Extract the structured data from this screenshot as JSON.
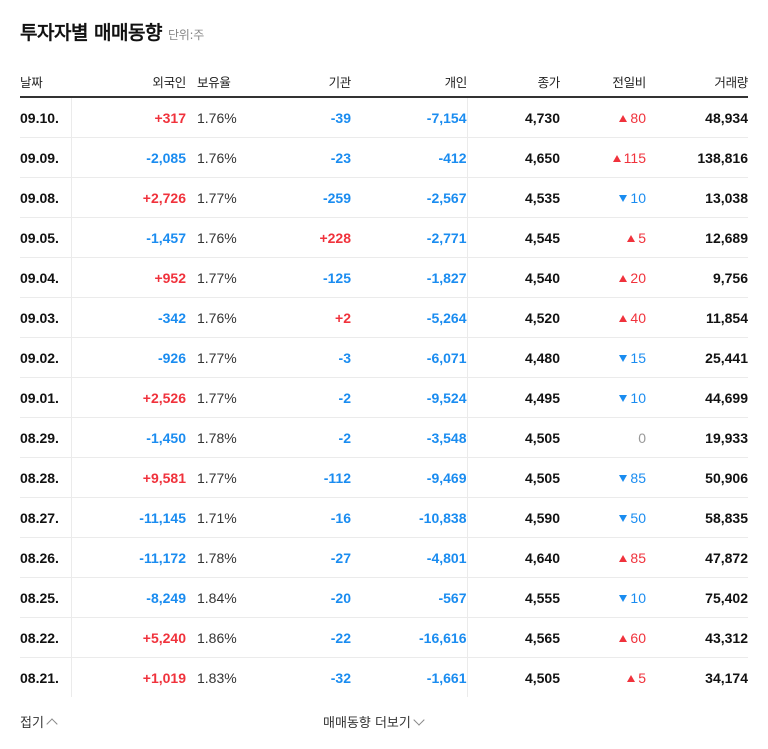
{
  "header": {
    "title": "투자자별 매매동향",
    "unit": "단위:주"
  },
  "table": {
    "columns": [
      "날짜",
      "외국인",
      "보유율",
      "기관",
      "개인",
      "종가",
      "전일비",
      "거래량"
    ],
    "rows": [
      {
        "date": "09.10.",
        "foreign": "+317",
        "foreign_dir": "up",
        "ratio": "1.76%",
        "inst": "-39",
        "inst_dir": "down",
        "indiv": "-7,154",
        "indiv_dir": "down",
        "close": "4,730",
        "change": "80",
        "change_dir": "up",
        "volume": "48,934"
      },
      {
        "date": "09.09.",
        "foreign": "-2,085",
        "foreign_dir": "down",
        "ratio": "1.76%",
        "inst": "-23",
        "inst_dir": "down",
        "indiv": "-412",
        "indiv_dir": "down",
        "close": "4,650",
        "change": "115",
        "change_dir": "up",
        "volume": "138,816"
      },
      {
        "date": "09.08.",
        "foreign": "+2,726",
        "foreign_dir": "up",
        "ratio": "1.77%",
        "inst": "-259",
        "inst_dir": "down",
        "indiv": "-2,567",
        "indiv_dir": "down",
        "close": "4,535",
        "change": "10",
        "change_dir": "down",
        "volume": "13,038"
      },
      {
        "date": "09.05.",
        "foreign": "-1,457",
        "foreign_dir": "down",
        "ratio": "1.76%",
        "inst": "+228",
        "inst_dir": "up",
        "indiv": "-2,771",
        "indiv_dir": "down",
        "close": "4,545",
        "change": "5",
        "change_dir": "up",
        "volume": "12,689"
      },
      {
        "date": "09.04.",
        "foreign": "+952",
        "foreign_dir": "up",
        "ratio": "1.77%",
        "inst": "-125",
        "inst_dir": "down",
        "indiv": "-1,827",
        "indiv_dir": "down",
        "close": "4,540",
        "change": "20",
        "change_dir": "up",
        "volume": "9,756"
      },
      {
        "date": "09.03.",
        "foreign": "-342",
        "foreign_dir": "down",
        "ratio": "1.76%",
        "inst": "+2",
        "inst_dir": "up",
        "indiv": "-5,264",
        "indiv_dir": "down",
        "close": "4,520",
        "change": "40",
        "change_dir": "up",
        "volume": "11,854"
      },
      {
        "date": "09.02.",
        "foreign": "-926",
        "foreign_dir": "down",
        "ratio": "1.77%",
        "inst": "-3",
        "inst_dir": "down",
        "indiv": "-6,071",
        "indiv_dir": "down",
        "close": "4,480",
        "change": "15",
        "change_dir": "down",
        "volume": "25,441"
      },
      {
        "date": "09.01.",
        "foreign": "+2,526",
        "foreign_dir": "up",
        "ratio": "1.77%",
        "inst": "-2",
        "inst_dir": "down",
        "indiv": "-9,524",
        "indiv_dir": "down",
        "close": "4,495",
        "change": "10",
        "change_dir": "down",
        "volume": "44,699"
      },
      {
        "date": "08.29.",
        "foreign": "-1,450",
        "foreign_dir": "down",
        "ratio": "1.78%",
        "inst": "-2",
        "inst_dir": "down",
        "indiv": "-3,548",
        "indiv_dir": "down",
        "close": "4,505",
        "change": "0",
        "change_dir": "flat",
        "volume": "19,933"
      },
      {
        "date": "08.28.",
        "foreign": "+9,581",
        "foreign_dir": "up",
        "ratio": "1.77%",
        "inst": "-112",
        "inst_dir": "down",
        "indiv": "-9,469",
        "indiv_dir": "down",
        "close": "4,505",
        "change": "85",
        "change_dir": "down",
        "volume": "50,906"
      },
      {
        "date": "08.27.",
        "foreign": "-11,145",
        "foreign_dir": "down",
        "ratio": "1.71%",
        "inst": "-16",
        "inst_dir": "down",
        "indiv": "-10,838",
        "indiv_dir": "down",
        "close": "4,590",
        "change": "50",
        "change_dir": "down",
        "volume": "58,835"
      },
      {
        "date": "08.26.",
        "foreign": "-11,172",
        "foreign_dir": "down",
        "ratio": "1.78%",
        "inst": "-27",
        "inst_dir": "down",
        "indiv": "-4,801",
        "indiv_dir": "down",
        "close": "4,640",
        "change": "85",
        "change_dir": "up",
        "volume": "47,872"
      },
      {
        "date": "08.25.",
        "foreign": "-8,249",
        "foreign_dir": "down",
        "ratio": "1.84%",
        "inst": "-20",
        "inst_dir": "down",
        "indiv": "-567",
        "indiv_dir": "down",
        "close": "4,555",
        "change": "10",
        "change_dir": "down",
        "volume": "75,402"
      },
      {
        "date": "08.22.",
        "foreign": "+5,240",
        "foreign_dir": "up",
        "ratio": "1.86%",
        "inst": "-22",
        "inst_dir": "down",
        "indiv": "-16,616",
        "indiv_dir": "down",
        "close": "4,565",
        "change": "60",
        "change_dir": "up",
        "volume": "43,312"
      },
      {
        "date": "08.21.",
        "foreign": "+1,019",
        "foreign_dir": "up",
        "ratio": "1.83%",
        "inst": "-32",
        "inst_dir": "down",
        "indiv": "-1,661",
        "indiv_dir": "down",
        "close": "4,505",
        "change": "5",
        "change_dir": "up",
        "volume": "34,174"
      }
    ]
  },
  "footer": {
    "fold_label": "접기",
    "more_label": "매매동향 더보기"
  },
  "colors": {
    "up": "#f0323c",
    "down": "#1a8cf0",
    "flat": "#999999"
  }
}
